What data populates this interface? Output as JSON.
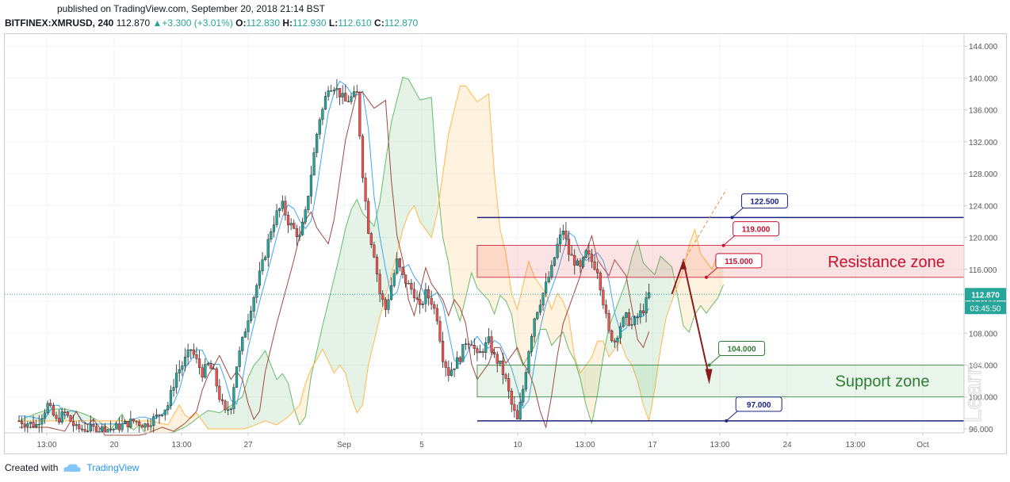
{
  "published": "published on TradingView.com, September 20, 2018 21:14 BST",
  "header": {
    "symbol": "BITFINEX:XMRUSD, 240",
    "last": "112.870",
    "change": "▲+3.300 (+3.01%)",
    "o_label": "O:",
    "o_val": "112.830",
    "h_label": "H:",
    "h_val": "112.930",
    "l_label": "L:",
    "l_val": "112.610",
    "c_label": "C:",
    "c_val": "112.870"
  },
  "footer": {
    "created": "Created with",
    "brand": "TradingView"
  },
  "colors": {
    "up": "#26a69a",
    "down": "#ef5350",
    "resistance": "#c8102e",
    "support": "#2e7d32",
    "level": "#1a237e",
    "arrow": "#8b1a1a"
  },
  "chart_data": {
    "type": "candlestick",
    "ylim": [
      95.5,
      145.5
    ],
    "y_ticks": [
      "144.000",
      "140.000",
      "136.000",
      "132.000",
      "128.000",
      "124.000",
      "120.000",
      "116.000",
      "112.000",
      "108.000",
      "104.000",
      "100.000",
      "96.000"
    ],
    "x_ticks": [
      "13:00",
      "20",
      "13:00",
      "27",
      "Sep",
      "5",
      "10",
      "13:00",
      "17",
      "13:00",
      "24",
      "13:00",
      "Oct"
    ],
    "last_price_label": "112.870",
    "countdown_label": "03:45:50",
    "close_path": [
      [
        0,
        97
      ],
      [
        6,
        96.5
      ],
      [
        10,
        99
      ],
      [
        13,
        97
      ],
      [
        16,
        98
      ],
      [
        20,
        96
      ],
      [
        25,
        96
      ],
      [
        33,
        96
      ],
      [
        40,
        97
      ],
      [
        44,
        96.5
      ],
      [
        48,
        97.5
      ],
      [
        52,
        99
      ],
      [
        55,
        103
      ],
      [
        57,
        104
      ],
      [
        60,
        106
      ],
      [
        62,
        104.5
      ],
      [
        64,
        103
      ],
      [
        66,
        104
      ],
      [
        68,
        103
      ],
      [
        70,
        100
      ],
      [
        72,
        98
      ],
      [
        74,
        99
      ],
      [
        76,
        104
      ],
      [
        78,
        107
      ],
      [
        80,
        110
      ],
      [
        83,
        114
      ],
      [
        86,
        118
      ],
      [
        88,
        121
      ],
      [
        90,
        123
      ],
      [
        92,
        124
      ],
      [
        94,
        122
      ],
      [
        96,
        121
      ],
      [
        98,
        120
      ],
      [
        100,
        123
      ],
      [
        102,
        128
      ],
      [
        104,
        133
      ],
      [
        105,
        135
      ],
      [
        106,
        136
      ],
      [
        108,
        139
      ],
      [
        110,
        139
      ],
      [
        112,
        138
      ],
      [
        114,
        137
      ],
      [
        116,
        137.5
      ],
      [
        118,
        138
      ],
      [
        120,
        128
      ],
      [
        122,
        121
      ],
      [
        124,
        118
      ],
      [
        126,
        113
      ],
      [
        128,
        111
      ],
      [
        130,
        114
      ],
      [
        132,
        117
      ],
      [
        134,
        115
      ],
      [
        136,
        114
      ],
      [
        138,
        113
      ],
      [
        140,
        111
      ],
      [
        142,
        113
      ],
      [
        144,
        112
      ],
      [
        146,
        110
      ],
      [
        148,
        105
      ],
      [
        150,
        103
      ],
      [
        152,
        104
      ],
      [
        154,
        105
      ],
      [
        156,
        107
      ],
      [
        158,
        107
      ],
      [
        160,
        105
      ],
      [
        162,
        106
      ],
      [
        164,
        107
      ],
      [
        166,
        105
      ],
      [
        168,
        104
      ],
      [
        170,
        102
      ],
      [
        172,
        99
      ],
      [
        174,
        97
      ],
      [
        176,
        101
      ],
      [
        178,
        106
      ],
      [
        180,
        110
      ],
      [
        182,
        112
      ],
      [
        184,
        114
      ],
      [
        186,
        116
      ],
      [
        188,
        119
      ],
      [
        190,
        121
      ],
      [
        192,
        118
      ],
      [
        194,
        117
      ],
      [
        196,
        116
      ],
      [
        198,
        118
      ],
      [
        200,
        117
      ],
      [
        202,
        116
      ],
      [
        204,
        112
      ],
      [
        206,
        108
      ],
      [
        208,
        107
      ],
      [
        210,
        109
      ],
      [
        212,
        110
      ],
      [
        214,
        109
      ],
      [
        216,
        110
      ],
      [
        218,
        111
      ],
      [
        220,
        112.87
      ]
    ],
    "resistance_zone": [
      115,
      119
    ],
    "support_zone": [
      100,
      104
    ],
    "levels": [
      122.5,
      97
    ],
    "labels": [
      "122.500",
      "119.000",
      "115.000",
      "104.000",
      "97.000"
    ],
    "annotations": [
      "Resistance zone",
      "Support zone"
    ]
  }
}
